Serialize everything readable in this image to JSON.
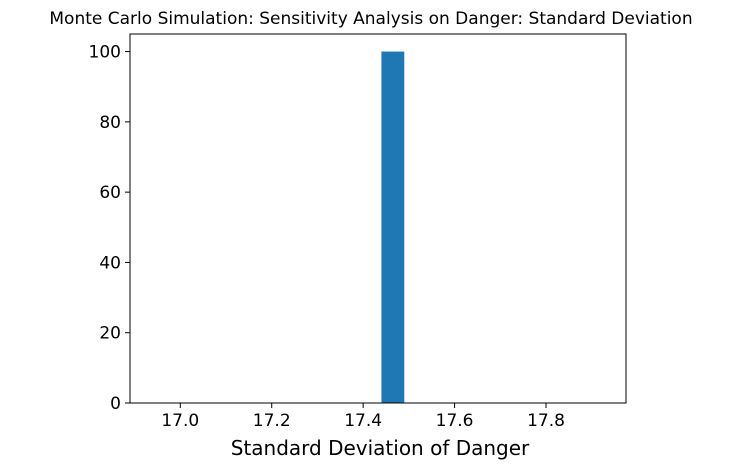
{
  "chart_data": {
    "type": "bar",
    "title": "Monte Carlo Simulation: Sensitivity Analysis on Danger: Standard Deviation",
    "xlabel": "Standard Deviation of Danger",
    "ylabel": "",
    "xlim": [
      16.89,
      17.975
    ],
    "ylim": [
      0,
      105
    ],
    "x_ticks": [
      {
        "value": 17.0,
        "label": "17.0"
      },
      {
        "value": 17.2,
        "label": "17.2"
      },
      {
        "value": 17.4,
        "label": "17.4"
      },
      {
        "value": 17.6,
        "label": "17.6"
      },
      {
        "value": 17.8,
        "label": "17.8"
      }
    ],
    "y_ticks": [
      {
        "value": 0,
        "label": "0"
      },
      {
        "value": 20,
        "label": "20"
      },
      {
        "value": 40,
        "label": "40"
      },
      {
        "value": 60,
        "label": "60"
      },
      {
        "value": 80,
        "label": "80"
      },
      {
        "value": 100,
        "label": "100"
      }
    ],
    "bars": [
      {
        "x_start": 17.44,
        "x_end": 17.49,
        "value": 100
      }
    ],
    "bar_color": "#1f77b4",
    "grid": false
  }
}
